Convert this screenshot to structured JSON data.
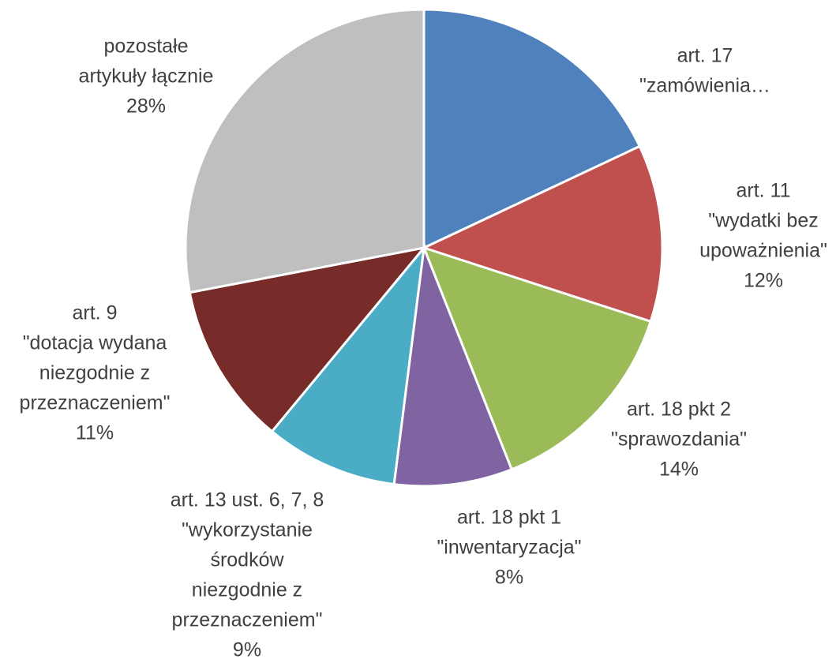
{
  "chart_data": {
    "type": "pie",
    "categories": [
      [
        "art. 17",
        "\"zamówienia…"
      ],
      [
        "art. 11",
        "\"wydatki bez",
        "upoważnienia\""
      ],
      [
        "art. 18 pkt 2",
        "\"sprawozdania\""
      ],
      [
        "art. 18 pkt 1",
        "\"inwentaryzacja\""
      ],
      [
        "art. 13 ust. 6, 7, 8",
        "\"wykorzystanie",
        "środków",
        "niezgodnie z",
        "przeznaczeniem\""
      ],
      [
        "art. 9",
        "\"dotacja wydana",
        "niezgodnie z",
        "przeznaczeniem\""
      ],
      [
        "pozostałe",
        "artykuły łącznie"
      ]
    ],
    "values": [
      18,
      12,
      14,
      8,
      9,
      11,
      28
    ],
    "value_labels": [
      null,
      "12%",
      "14%",
      "8%",
      "9%",
      "11%",
      "28%"
    ],
    "colors": [
      "#4f81bd",
      "#c0504d",
      "#9bbb59",
      "#8064a2",
      "#4bacc6",
      "#772c2a",
      "#bfbfbf"
    ]
  }
}
